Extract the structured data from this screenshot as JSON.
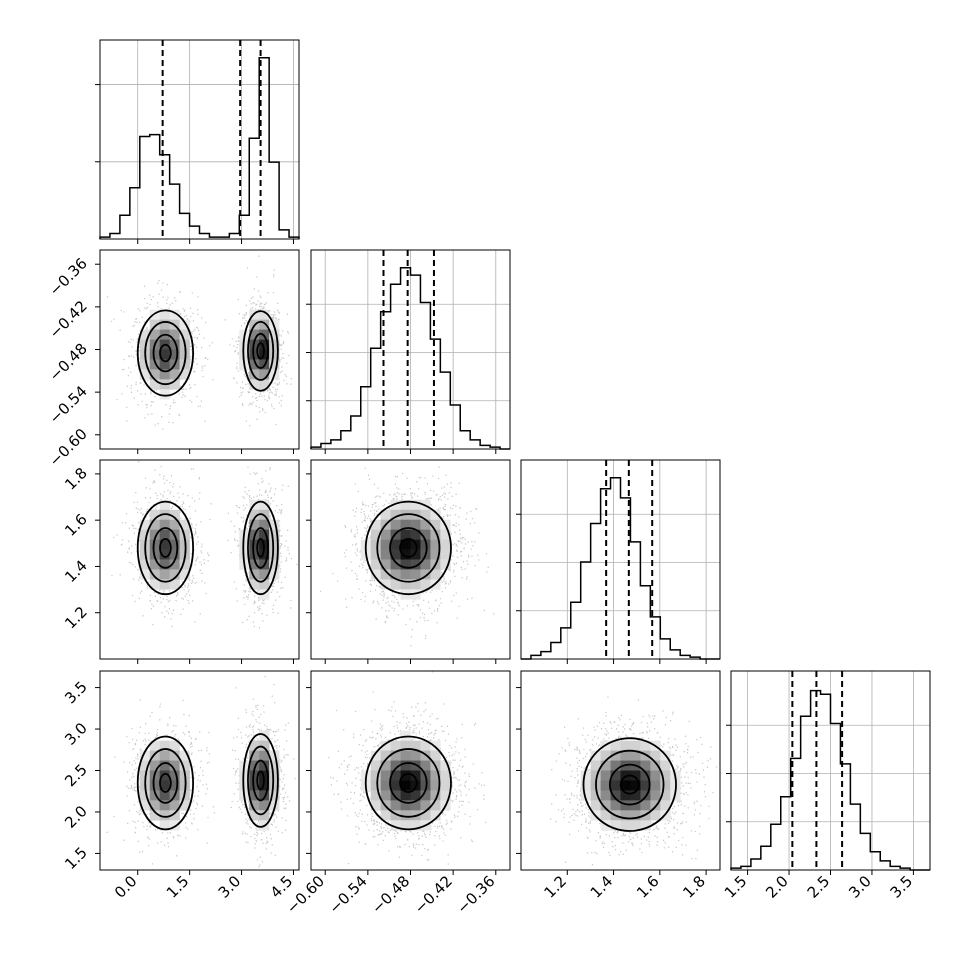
{
  "chart_data": {
    "type": "corner",
    "dimensions": [
      {
        "range": [
          -1.09,
          4.66
        ],
        "ticks": [
          0.0,
          1.5,
          3.0,
          4.5
        ],
        "tick_labels": [
          "0.0",
          "1.5",
          "3.0",
          "4.5"
        ],
        "quantiles": [
          0.72,
          2.96,
          3.55
        ]
      },
      {
        "range": [
          -0.62,
          -0.34
        ],
        "ticks": [
          -0.6,
          -0.54,
          -0.48,
          -0.42,
          -0.36
        ],
        "tick_labels": [
          "−0.60",
          "−0.54",
          "−0.48",
          "−0.42",
          "−0.36"
        ],
        "quantiles": [
          -0.518,
          -0.484,
          -0.447
        ]
      },
      {
        "range": [
          1.0,
          1.86
        ],
        "ticks": [
          1.2,
          1.4,
          1.6,
          1.8
        ],
        "tick_labels": [
          "1.2",
          "1.4",
          "1.6",
          "1.8"
        ],
        "quantiles": [
          1.368,
          1.466,
          1.567
        ]
      },
      {
        "range": [
          1.3,
          3.7
        ],
        "ticks": [
          1.5,
          2.0,
          2.5,
          3.0,
          3.5
        ],
        "tick_labels": [
          "1.5",
          "2.0",
          "2.5",
          "3.0",
          "3.5"
        ],
        "quantiles": [
          2.04,
          2.33,
          2.64
        ]
      }
    ],
    "histograms": [
      {
        "dim": 0,
        "counts": [
          0.01,
          0.03,
          0.13,
          0.28,
          0.56,
          0.57,
          0.46,
          0.3,
          0.14,
          0.07,
          0.03,
          0.01,
          0.01,
          0.03,
          0.13,
          0.55,
          0.99,
          0.42,
          0.05,
          0.01
        ],
        "ticks": [
          0.4,
          0.8
        ]
      },
      {
        "dim": 1,
        "counts": [
          0.01,
          0.03,
          0.05,
          0.1,
          0.18,
          0.34,
          0.55,
          0.75,
          0.9,
          0.99,
          0.95,
          0.8,
          0.6,
          0.42,
          0.24,
          0.1,
          0.05,
          0.02,
          0.01,
          0.0
        ],
        "ticks": [
          0.25,
          0.5,
          0.75
        ]
      },
      {
        "dim": 2,
        "counts": [
          0.0,
          0.02,
          0.04,
          0.09,
          0.17,
          0.31,
          0.53,
          0.74,
          0.93,
          0.99,
          0.88,
          0.64,
          0.4,
          0.23,
          0.11,
          0.05,
          0.02,
          0.01,
          0.0,
          0.0
        ],
        "ticks": [
          0.25,
          0.5,
          0.75
        ]
      },
      {
        "dim": 3,
        "counts": [
          0.01,
          0.02,
          0.06,
          0.13,
          0.25,
          0.4,
          0.61,
          0.84,
          0.98,
          0.96,
          0.8,
          0.58,
          0.36,
          0.2,
          0.1,
          0.05,
          0.02,
          0.01,
          0.0,
          0.0
        ],
        "ticks": [
          0.25,
          0.5,
          0.75
        ]
      }
    ],
    "pairs": [
      {
        "x_dim": 0,
        "y_dim": 1,
        "modes": [
          {
            "x": 0.8,
            "y": -0.485,
            "sx": 0.4,
            "sy": 0.03,
            "w": 0.45
          },
          {
            "x": 3.55,
            "y": -0.482,
            "sx": 0.25,
            "sy": 0.028,
            "w": 0.55
          }
        ]
      },
      {
        "x_dim": 0,
        "y_dim": 2,
        "modes": [
          {
            "x": 0.8,
            "y": 1.48,
            "sx": 0.4,
            "sy": 0.1,
            "w": 0.45
          },
          {
            "x": 3.55,
            "y": 1.48,
            "sx": 0.25,
            "sy": 0.1,
            "w": 0.55
          }
        ]
      },
      {
        "x_dim": 0,
        "y_dim": 3,
        "modes": [
          {
            "x": 0.8,
            "y": 2.35,
            "sx": 0.4,
            "sy": 0.28,
            "w": 0.45
          },
          {
            "x": 3.55,
            "y": 2.38,
            "sx": 0.25,
            "sy": 0.28,
            "w": 0.55
          }
        ]
      },
      {
        "x_dim": 1,
        "y_dim": 2,
        "modes": [
          {
            "x": -0.483,
            "y": 1.48,
            "sx": 0.03,
            "sy": 0.1,
            "w": 1.0
          }
        ]
      },
      {
        "x_dim": 1,
        "y_dim": 3,
        "modes": [
          {
            "x": -0.483,
            "y": 2.35,
            "sx": 0.03,
            "sy": 0.28,
            "w": 1.0
          }
        ]
      },
      {
        "x_dim": 2,
        "y_dim": 3,
        "modes": [
          {
            "x": 1.47,
            "y": 2.33,
            "sx": 0.1,
            "sy": 0.28,
            "w": 1.0
          }
        ]
      }
    ],
    "contour_levels": [
      0.39,
      0.86,
      1.46,
      2.0
    ],
    "colors": {
      "line": "#000000",
      "grid": "#b0b0b0",
      "points": "#888888"
    },
    "grid": true,
    "title": "",
    "xlabel": "",
    "ylabel": ""
  }
}
